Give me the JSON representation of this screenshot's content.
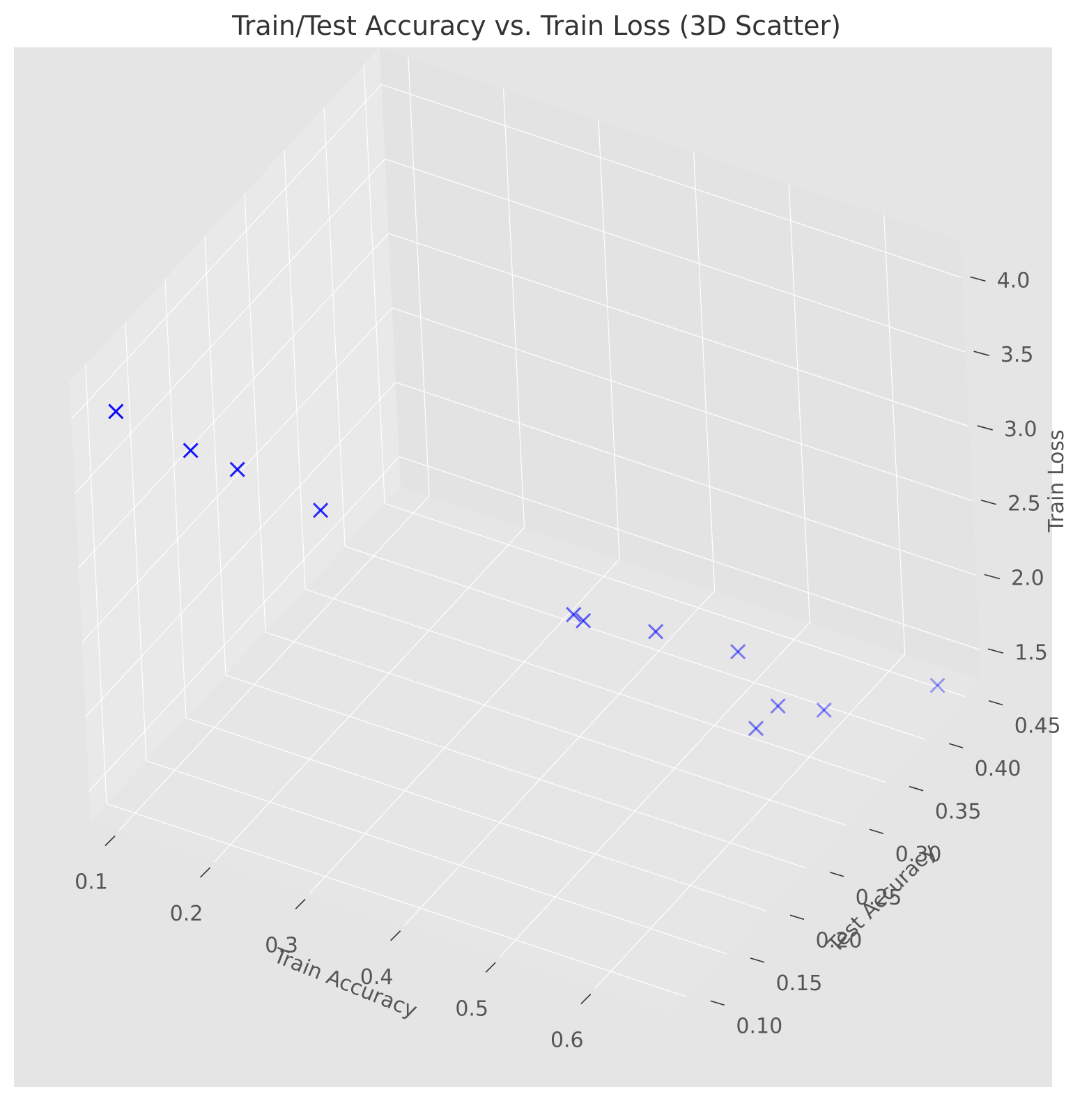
{
  "chart_data": {
    "type": "scatter",
    "projection": "3d",
    "title": "Train/Test Accuracy vs. Train Loss (3D Scatter)",
    "xlabel": "Train Accuracy",
    "ylabel": "Test Accuracy",
    "zlabel": "Train Loss",
    "marker": "x",
    "color": "#0000ff",
    "background": "#e5e5e5",
    "grid": true,
    "xlim": [
      0.07,
      0.68
    ],
    "ylim": [
      0.08,
      0.47
    ],
    "zlim": [
      1.3,
      4.25
    ],
    "xticks": [
      "0.1",
      "0.2",
      "0.3",
      "0.4",
      "0.5",
      "0.6"
    ],
    "yticks": [
      "0.10",
      "0.15",
      "0.20",
      "0.25",
      "0.30",
      "0.35",
      "0.40",
      "0.45"
    ],
    "zticks": [
      "1.5",
      "2.0",
      "2.5",
      "3.0",
      "3.5",
      "4.0"
    ],
    "points": [
      {
        "x": 0.1,
        "y": 0.1,
        "z": 4.0
      },
      {
        "x": 0.16,
        "y": 0.12,
        "z": 3.75
      },
      {
        "x": 0.2,
        "y": 0.13,
        "z": 3.65
      },
      {
        "x": 0.26,
        "y": 0.16,
        "z": 3.33
      },
      {
        "x": 0.4,
        "y": 0.3,
        "z": 2.12
      },
      {
        "x": 0.41,
        "y": 0.3,
        "z": 2.1
      },
      {
        "x": 0.46,
        "y": 0.33,
        "z": 1.96
      },
      {
        "x": 0.52,
        "y": 0.36,
        "z": 1.78
      },
      {
        "x": 0.58,
        "y": 0.31,
        "z": 1.68
      },
      {
        "x": 0.56,
        "y": 0.36,
        "z": 1.5
      },
      {
        "x": 0.6,
        "y": 0.37,
        "z": 1.5
      },
      {
        "x": 0.66,
        "y": 0.44,
        "z": 1.39
      }
    ]
  }
}
